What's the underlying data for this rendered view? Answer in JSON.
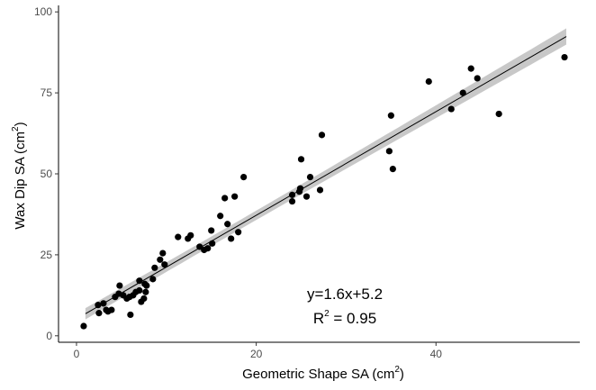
{
  "chart_data": {
    "type": "scatter",
    "xlabel": {
      "base": "Geometric Shape SA (cm",
      "sup": "2",
      "close": ")"
    },
    "ylabel": {
      "base": "Wax Dip SA (cm",
      "sup": "2",
      "close": ")"
    },
    "xlim": [
      -2,
      56
    ],
    "ylim": [
      -2,
      102
    ],
    "x_ticks": [
      0,
      20,
      40
    ],
    "y_ticks": [
      0,
      25,
      50,
      75,
      100
    ],
    "grid": false,
    "annotation": {
      "equation": "y=1.6x+5.2",
      "r2_prefix": "R",
      "r2_sup": "2",
      "r2_value": " = 0.95"
    },
    "fit": {
      "slope": 1.6,
      "intercept": 5.2,
      "x_range": [
        1,
        54.5
      ],
      "band_color": "#c8c8c8"
    },
    "point_color": "#000000",
    "points": [
      [
        0.8,
        3
      ],
      [
        2.4,
        9.5
      ],
      [
        2.5,
        7
      ],
      [
        3.0,
        10
      ],
      [
        3.3,
        8
      ],
      [
        3.5,
        7.5
      ],
      [
        3.9,
        8
      ],
      [
        4.3,
        12
      ],
      [
        4.7,
        13
      ],
      [
        4.8,
        15.5
      ],
      [
        5.2,
        12.5
      ],
      [
        5.6,
        11.5
      ],
      [
        5.9,
        12
      ],
      [
        6.0,
        6.5
      ],
      [
        6.3,
        12.5
      ],
      [
        6.6,
        13.5
      ],
      [
        7.0,
        14
      ],
      [
        7.0,
        17
      ],
      [
        7.2,
        10.5
      ],
      [
        7.5,
        11.5
      ],
      [
        7.6,
        16
      ],
      [
        7.7,
        13.5
      ],
      [
        7.8,
        15.5
      ],
      [
        8.5,
        17.5
      ],
      [
        8.7,
        21
      ],
      [
        9.3,
        23.5
      ],
      [
        9.6,
        25.5
      ],
      [
        9.8,
        22
      ],
      [
        11.3,
        30.5
      ],
      [
        12.4,
        30
      ],
      [
        12.7,
        31
      ],
      [
        13.7,
        27.5
      ],
      [
        14.2,
        26.5
      ],
      [
        14.6,
        27
      ],
      [
        15.0,
        32.5
      ],
      [
        15.1,
        28.5
      ],
      [
        16.0,
        37
      ],
      [
        16.5,
        42.5
      ],
      [
        16.8,
        34.5
      ],
      [
        17.2,
        30
      ],
      [
        17.6,
        43
      ],
      [
        18.0,
        32
      ],
      [
        18.6,
        49
      ],
      [
        24.0,
        41.5
      ],
      [
        24.0,
        43.5
      ],
      [
        24.8,
        44.5
      ],
      [
        24.9,
        45.5
      ],
      [
        25.0,
        54.5
      ],
      [
        25.6,
        43
      ],
      [
        26.0,
        49
      ],
      [
        27.1,
        45
      ],
      [
        27.3,
        62
      ],
      [
        34.8,
        57
      ],
      [
        35.0,
        68
      ],
      [
        35.2,
        51.5
      ],
      [
        39.2,
        78.5
      ],
      [
        41.7,
        70
      ],
      [
        43.0,
        75
      ],
      [
        43.9,
        82.5
      ],
      [
        44.6,
        79.5
      ],
      [
        47.0,
        68.5
      ],
      [
        54.3,
        86
      ]
    ]
  }
}
